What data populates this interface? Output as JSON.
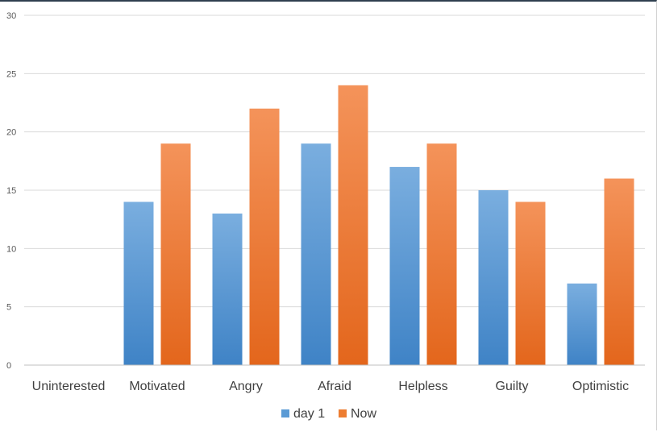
{
  "chart_data": {
    "type": "bar",
    "title": "",
    "xlabel": "",
    "ylabel": "",
    "ylim": [
      0,
      30
    ],
    "yticks": [
      0,
      5,
      10,
      15,
      20,
      25,
      30
    ],
    "grid": true,
    "legend_position": "bottom",
    "categories": [
      "Uninterested",
      "Motivated",
      "Angry",
      "Afraid",
      "Helpless",
      "Guilty",
      "Optimistic"
    ],
    "series": [
      {
        "name": "day 1",
        "values": [
          0,
          14,
          13,
          19,
          17,
          15,
          7
        ],
        "color": "#5b9bd5",
        "color_light": "#7aaedf",
        "color_dark": "#3f83c6"
      },
      {
        "name": "Now",
        "values": [
          0,
          19,
          22,
          24,
          19,
          14,
          16
        ],
        "color": "#ed7d31",
        "color_light": "#f4935a",
        "color_dark": "#e3661c"
      }
    ]
  }
}
